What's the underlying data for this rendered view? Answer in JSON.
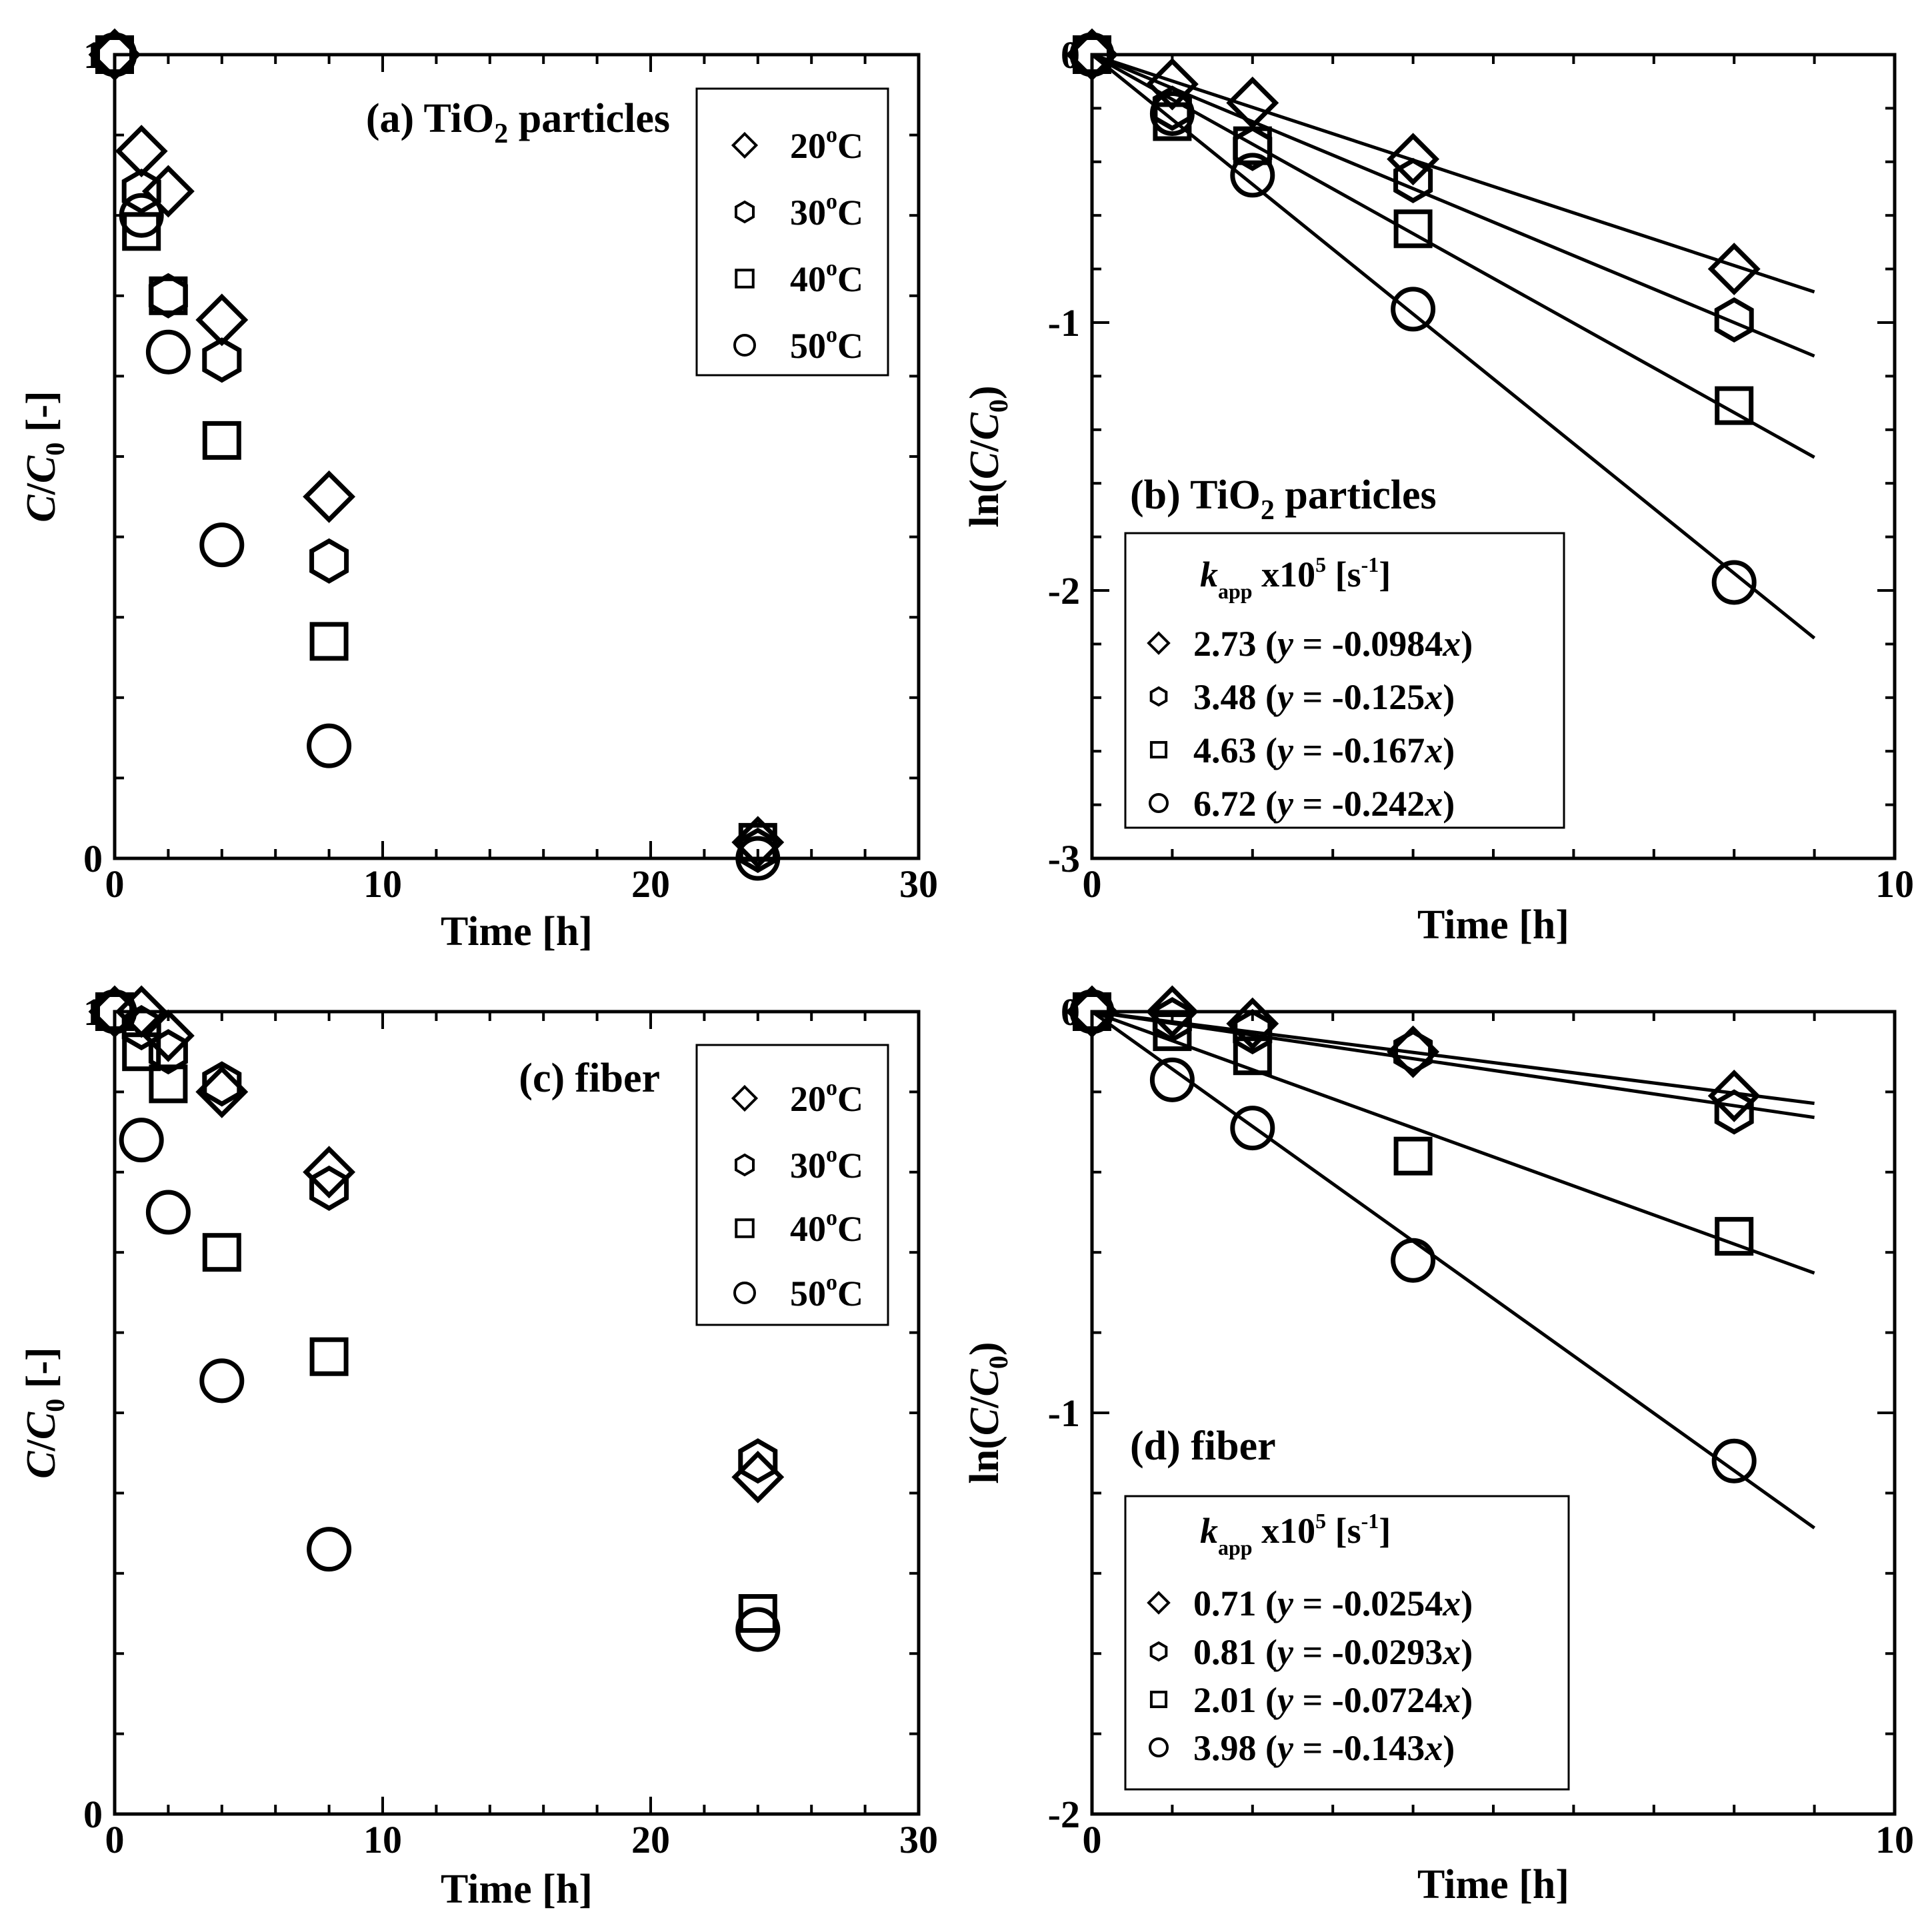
{
  "chart_data": [
    {
      "type": "scatter",
      "panel": "a",
      "title": "(a) TiO",
      "title_sub": "2",
      "title_tail": " particles",
      "xlabel": "Time [h]",
      "ylabel": "C/C",
      "ylabel_sub": "0",
      "ylabel_unit": " [-]",
      "xlim": [
        0,
        30
      ],
      "ylim": [
        0,
        1
      ],
      "xticks": [
        0,
        10,
        20,
        30
      ],
      "xtick_labels": [
        "0",
        "10",
        "20",
        "30"
      ],
      "yticks": [
        0,
        1
      ],
      "ytick_labels": [
        "0",
        "1"
      ],
      "legend_position": "top-right",
      "series": [
        {
          "name": "20°C",
          "label_num": "20",
          "label_sup": "o",
          "label_tail": "C",
          "marker": "diamond",
          "x": [
            0,
            1,
            2,
            4,
            8,
            24
          ],
          "y": [
            1.0,
            0.88,
            0.83,
            0.67,
            0.45,
            0.02
          ]
        },
        {
          "name": "30°C",
          "label_num": "30",
          "label_sup": "o",
          "label_tail": "C",
          "marker": "hexagon",
          "x": [
            0,
            1,
            2,
            4,
            8,
            24
          ],
          "y": [
            1.0,
            0.83,
            0.7,
            0.62,
            0.37,
            0.01
          ]
        },
        {
          "name": "40°C",
          "label_num": "40",
          "label_sup": "o",
          "label_tail": "C",
          "marker": "square",
          "x": [
            0,
            1,
            2,
            4,
            8,
            24
          ],
          "y": [
            1.0,
            0.78,
            0.7,
            0.52,
            0.27,
            0.02
          ]
        },
        {
          "name": "50°C",
          "label_num": "50",
          "label_sup": "o",
          "label_tail": "C",
          "marker": "circle",
          "x": [
            0,
            1,
            2,
            4,
            8,
            24
          ],
          "y": [
            1.0,
            0.8,
            0.63,
            0.39,
            0.14,
            0.0
          ]
        }
      ]
    },
    {
      "type": "scatter",
      "panel": "b",
      "title": "(b) TiO",
      "title_sub": "2",
      "title_tail": " particles",
      "xlabel": "Time [h]",
      "ylabel": "ln(C/C",
      "ylabel_sub": "0",
      "ylabel_unit": ")",
      "xlim": [
        0,
        10
      ],
      "ylim": [
        -3,
        0
      ],
      "xticks": [
        0,
        10
      ],
      "xtick_labels": [
        "0",
        "10"
      ],
      "yticks": [
        0,
        -1,
        -2,
        -3
      ],
      "ytick_labels": [
        "0",
        "-1",
        "-2",
        "-3"
      ],
      "legend_position": "bottom-left",
      "legend_title": "k",
      "legend_title_sub": "app",
      "legend_title_mid": " x10",
      "legend_title_sup": "5",
      "legend_title_unit": " [s",
      "legend_title_unit_sup": "-1",
      "legend_title_end": "]",
      "fit_xmax": 9,
      "series": [
        {
          "name": "2.73 (y = -0.0984x)",
          "k_app": "2.73",
          "eq_open": " (",
          "eq_y": "y",
          "eq_mid": " = -0.0984",
          "eq_x": "x",
          "eq_close": ")",
          "marker": "diamond",
          "slope": -0.0984,
          "x": [
            0,
            1,
            2,
            4,
            8
          ],
          "y": [
            0.0,
            -0.11,
            -0.18,
            -0.39,
            -0.8
          ]
        },
        {
          "name": "3.48 (y = -0.125x)",
          "k_app": "3.48",
          "eq_open": " (",
          "eq_y": "y",
          "eq_mid": " = -0.125",
          "eq_x": "x",
          "eq_close": ")",
          "marker": "hexagon",
          "slope": -0.125,
          "x": [
            0,
            1,
            2,
            4,
            8
          ],
          "y": [
            0.0,
            -0.2,
            -0.35,
            -0.47,
            -0.99
          ]
        },
        {
          "name": "4.63 (y = -0.167x)",
          "k_app": "4.63",
          "eq_open": " (",
          "eq_y": "y",
          "eq_mid": " = -0.167",
          "eq_x": "x",
          "eq_close": ")",
          "marker": "square",
          "slope": -0.167,
          "x": [
            0,
            1,
            2,
            4,
            8
          ],
          "y": [
            0.0,
            -0.25,
            -0.34,
            -0.65,
            -1.31
          ]
        },
        {
          "name": "6.72 (y = -0.242x)",
          "k_app": "6.72",
          "eq_open": " (",
          "eq_y": "y",
          "eq_mid": " = -0.242",
          "eq_x": "x",
          "eq_close": ")",
          "marker": "circle",
          "slope": -0.242,
          "x": [
            0,
            1,
            2,
            4,
            8
          ],
          "y": [
            0.0,
            -0.22,
            -0.45,
            -0.95,
            -1.97
          ]
        }
      ]
    },
    {
      "type": "scatter",
      "panel": "c",
      "title": "(c) fiber",
      "title_sub": "",
      "title_tail": "",
      "xlabel": "Time [h]",
      "ylabel": "C/C",
      "ylabel_sub": "0",
      "ylabel_unit": " [-]",
      "xlim": [
        0,
        30
      ],
      "ylim": [
        0,
        1
      ],
      "xticks": [
        0,
        10,
        20,
        30
      ],
      "xtick_labels": [
        "0",
        "10",
        "20",
        "30"
      ],
      "yticks": [
        0,
        1
      ],
      "ytick_labels": [
        "0",
        "1"
      ],
      "legend_position": "top-right",
      "series": [
        {
          "name": "20°C",
          "label_num": "20",
          "label_sup": "o",
          "label_tail": "C",
          "marker": "diamond",
          "x": [
            0,
            1,
            2,
            4,
            8,
            24
          ],
          "y": [
            1.0,
            1.0,
            0.97,
            0.9,
            0.8,
            0.42
          ]
        },
        {
          "name": "30°C",
          "label_num": "30",
          "label_sup": "o",
          "label_tail": "C",
          "marker": "hexagon",
          "x": [
            0,
            1,
            2,
            4,
            8,
            24
          ],
          "y": [
            1.0,
            0.98,
            0.95,
            0.91,
            0.78,
            0.44
          ]
        },
        {
          "name": "40°C",
          "label_num": "40",
          "label_sup": "o",
          "label_tail": "C",
          "marker": "square",
          "x": [
            0,
            1,
            2,
            4,
            8,
            24
          ],
          "y": [
            1.0,
            0.95,
            0.91,
            0.7,
            0.57,
            0.25
          ]
        },
        {
          "name": "50°C",
          "label_num": "50",
          "label_sup": "o",
          "label_tail": "C",
          "marker": "circle",
          "x": [
            0,
            1,
            2,
            4,
            8,
            24
          ],
          "y": [
            1.0,
            0.84,
            0.75,
            0.54,
            0.33,
            0.23
          ]
        }
      ]
    },
    {
      "type": "scatter",
      "panel": "d",
      "title": "(d) fiber",
      "title_sub": "",
      "title_tail": "",
      "xlabel": "Time [h]",
      "ylabel": "ln(C/C",
      "ylabel_sub": "0",
      "ylabel_unit": ")",
      "xlim": [
        0,
        10
      ],
      "ylim": [
        -2,
        0
      ],
      "xticks": [
        0,
        10
      ],
      "xtick_labels": [
        "0",
        "10"
      ],
      "yticks": [
        0,
        -1,
        -2
      ],
      "ytick_labels": [
        "0",
        "-1",
        "-2"
      ],
      "legend_position": "bottom-left",
      "legend_title": "k",
      "legend_title_sub": "app",
      "legend_title_mid": " x10",
      "legend_title_sup": "5",
      "legend_title_unit": " [s",
      "legend_title_unit_sup": "-1",
      "legend_title_end": "]",
      "fit_xmax": 9,
      "series": [
        {
          "name": "0.71 (y = -0.0254x)",
          "k_app": "0.71",
          "eq_open": " (",
          "eq_y": "y",
          "eq_mid": " = -0.0254",
          "eq_x": "x",
          "eq_close": ")",
          "marker": "diamond",
          "slope": -0.0254,
          "x": [
            0,
            1,
            2,
            4,
            8
          ],
          "y": [
            0.0,
            0.0,
            -0.03,
            -0.1,
            -0.21
          ]
        },
        {
          "name": "0.81 (y = -0.0293x)",
          "k_app": "0.81",
          "eq_open": " (",
          "eq_y": "y",
          "eq_mid": " = -0.0293",
          "eq_x": "x",
          "eq_close": ")",
          "marker": "hexagon",
          "slope": -0.0293,
          "x": [
            0,
            1,
            2,
            4,
            8
          ],
          "y": [
            0.0,
            -0.02,
            -0.05,
            -0.1,
            -0.25
          ]
        },
        {
          "name": "2.01 (y = -0.0724x)",
          "k_app": "2.01",
          "eq_open": " (",
          "eq_y": "y",
          "eq_mid": " = -0.0724",
          "eq_x": "x",
          "eq_close": ")",
          "marker": "square",
          "slope": -0.0724,
          "x": [
            0,
            1,
            2,
            4,
            8
          ],
          "y": [
            0.0,
            -0.05,
            -0.11,
            -0.36,
            -0.56
          ]
        },
        {
          "name": "3.98 (y = -0.143x)",
          "k_app": "3.98",
          "eq_open": " (",
          "eq_y": "y",
          "eq_mid": " = -0.143",
          "eq_x": "x",
          "eq_close": ")",
          "marker": "circle",
          "slope": -0.143,
          "x": [
            0,
            1,
            2,
            4,
            8
          ],
          "y": [
            0.0,
            -0.17,
            -0.29,
            -0.62,
            -1.12
          ]
        }
      ]
    }
  ]
}
